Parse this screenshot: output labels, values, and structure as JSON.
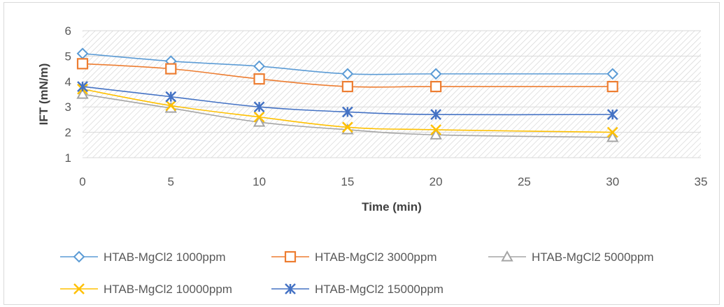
{
  "chart_data": {
    "type": "line",
    "xlabel": "Time (min)",
    "ylabel": "IFT (mN/m)",
    "xlim": [
      0,
      35
    ],
    "ylim": [
      1,
      6
    ],
    "x_ticks": [
      0,
      5,
      10,
      15,
      20,
      25,
      30,
      35
    ],
    "y_ticks": [
      1,
      2,
      3,
      4,
      5,
      6
    ],
    "grid": true,
    "plot_background": "hatched",
    "legend_position": "bottom",
    "x": [
      0,
      5,
      10,
      15,
      20,
      30
    ],
    "series": [
      {
        "name": "HTAB-MgCl2 1000ppm",
        "values": [
          5.1,
          4.8,
          4.6,
          4.3,
          4.3,
          4.3
        ],
        "color": "#5b9bd5",
        "marker": "diamond"
      },
      {
        "name": "HTAB-MgCl2 3000ppm",
        "values": [
          4.7,
          4.5,
          4.1,
          3.8,
          3.8,
          3.8
        ],
        "color": "#ed7d31",
        "marker": "square"
      },
      {
        "name": "HTAB-MgCl2 5000ppm",
        "values": [
          3.5,
          2.95,
          2.4,
          2.1,
          1.9,
          1.8
        ],
        "color": "#a5a5a5",
        "marker": "triangle"
      },
      {
        "name": "HTAB-MgCl2 10000ppm",
        "values": [
          3.7,
          3.05,
          2.6,
          2.2,
          2.1,
          2.0
        ],
        "color": "#ffc000",
        "marker": "x"
      },
      {
        "name": "HTAB-MgCl2 15000ppm",
        "values": [
          3.8,
          3.4,
          3.0,
          2.8,
          2.7,
          2.7
        ],
        "color": "#4472c4",
        "marker": "asterisk"
      }
    ]
  }
}
